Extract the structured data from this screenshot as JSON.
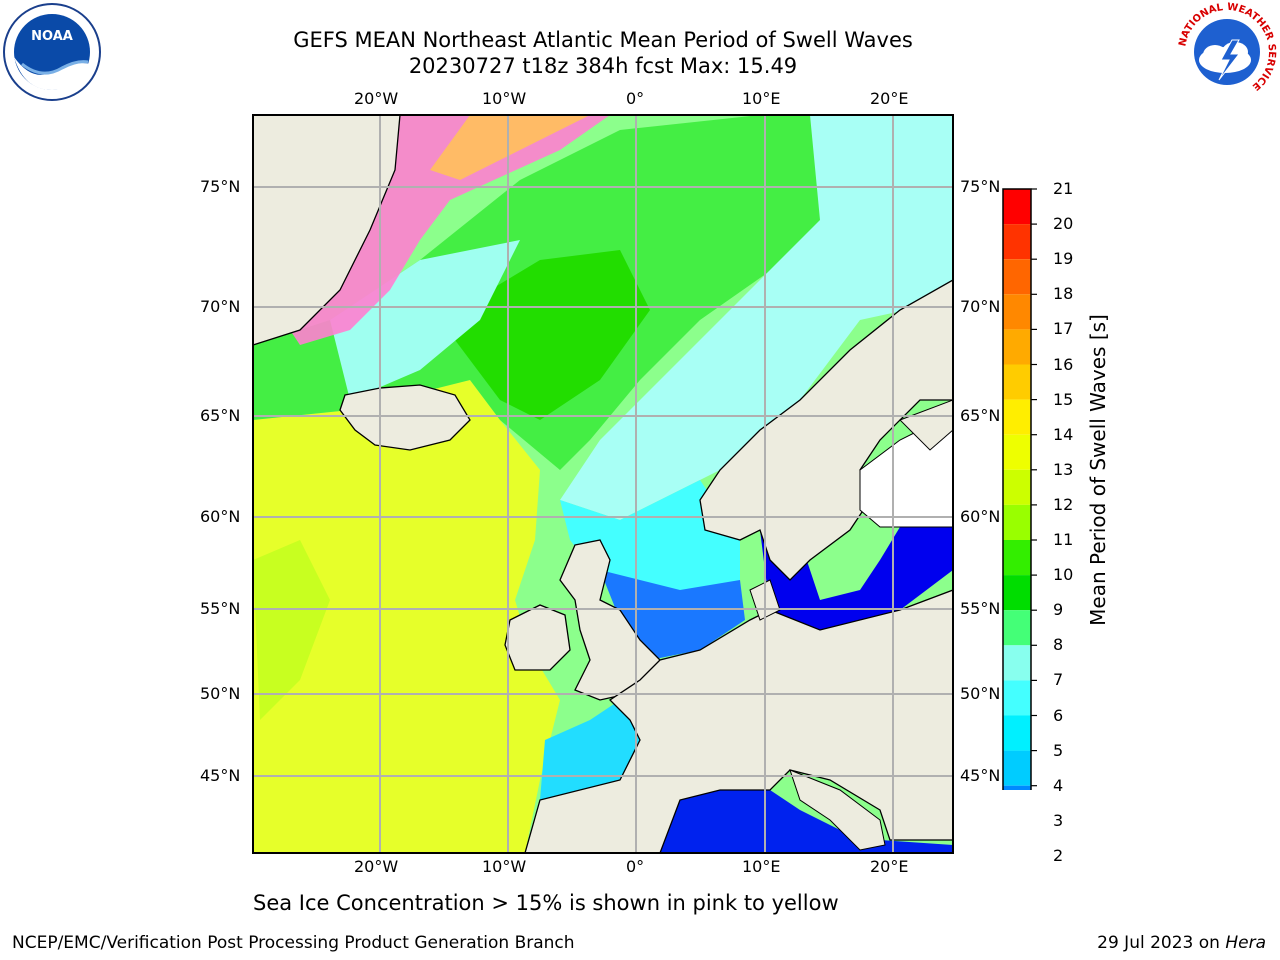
{
  "title_line1": "GEFS MEAN Northeast Atlantic Mean Period of Swell Waves",
  "title_line2": "20230727 t18z 384h fcst   Max: 15.49",
  "logo_left_text": "NOAA",
  "logo_right_text": "NATIONAL WEATHER SERVICE",
  "top_lon_labels": [
    "20°W",
    "10°W",
    "0°",
    "10°E",
    "20°E"
  ],
  "bottom_lon_labels": [
    "20°W",
    "10°W",
    "0°",
    "10°E",
    "20°E"
  ],
  "lat_labels": [
    "75°N",
    "70°N",
    "65°N",
    "60°N",
    "55°N",
    "50°N",
    "45°N"
  ],
  "colorbar": {
    "title": "Mean Period of Swell Waves [s]",
    "ticks": [
      "21",
      "20",
      "19",
      "18",
      "17",
      "16",
      "15",
      "14",
      "13",
      "12",
      "11",
      "10",
      "9",
      "8",
      "7",
      "6",
      "5",
      "4",
      "3",
      "2"
    ],
    "colors_top_to_bottom": [
      "#ff0000",
      "#ff3300",
      "#ff6600",
      "#ff8800",
      "#ffaa00",
      "#ffcc00",
      "#ffee00",
      "#eeff00",
      "#ccff00",
      "#99ff00",
      "#33ee00",
      "#00dd00",
      "#44ff77",
      "#88ffee",
      "#44ffff",
      "#00f0ff",
      "#00ccff",
      "#0088ff",
      "#0044ff",
      "#0000ff"
    ]
  },
  "ice_note": "Sea Ice Concentration > 15% is shown in pink to yellow",
  "footer_left": "NCEP/EMC/Verification Post Processing Product Generation Branch",
  "footer_date": "29 Jul 2023 on ",
  "footer_host": "Hera"
}
